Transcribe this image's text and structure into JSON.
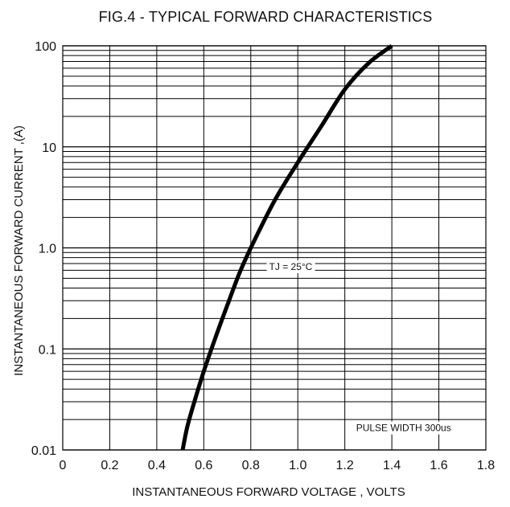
{
  "chart_data": {
    "type": "line",
    "title": "FIG.4 - TYPICAL FORWARD CHARACTERISTICS",
    "xlabel": "INSTANTANEOUS FORWARD VOLTAGE , VOLTS",
    "ylabel": "INSTANTANEOUS  FORWARD CURRENT ,(A)",
    "x_ticks": [
      "0",
      "0.2",
      "0.4",
      "0.6",
      "0.8",
      "1.0",
      "1.2",
      "1.4",
      "1.6",
      "1.8"
    ],
    "y_ticks": [
      "0.01",
      "0.1",
      "1.0",
      "10",
      "100"
    ],
    "xlim": [
      0,
      1.8
    ],
    "ylim": [
      0.01,
      100
    ],
    "y_scale": "log",
    "grid": true,
    "series": [
      {
        "x": [
          0.51,
          0.53,
          0.56,
          0.6,
          0.65,
          0.7,
          0.75,
          0.8,
          0.9,
          1.0,
          1.1,
          1.2,
          1.3,
          1.4
        ],
        "y": [
          0.01,
          0.017,
          0.03,
          0.06,
          0.13,
          0.27,
          0.55,
          1.0,
          2.9,
          7.0,
          16.0,
          37.0,
          67.0,
          100.0
        ],
        "color": "#000000"
      }
    ],
    "annotations": [
      {
        "text": "TJ = 25°C",
        "x": 0.97,
        "y": 0.65
      },
      {
        "text": "PULSE WIDTH 300us",
        "x": 1.45,
        "y": 0.0165
      }
    ]
  }
}
